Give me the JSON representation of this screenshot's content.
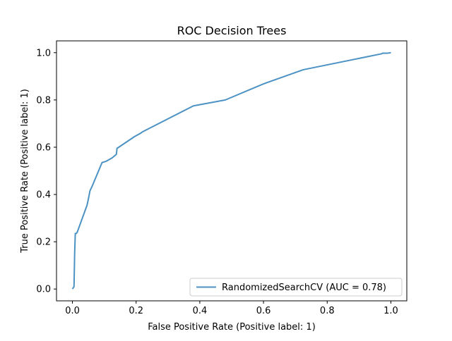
{
  "chart_data": {
    "type": "line",
    "title": "ROC Decision Trees",
    "xlabel": "False Positive Rate (Positive label: 1)",
    "ylabel": "True Positive Rate (Positive label: 1)",
    "xlim": [
      -0.05,
      1.05
    ],
    "ylim": [
      -0.05,
      1.05
    ],
    "xticks": [
      0.0,
      0.2,
      0.4,
      0.6,
      0.8,
      1.0
    ],
    "xtick_labels": [
      "0.0",
      "0.2",
      "0.4",
      "0.6",
      "0.8",
      "1.0"
    ],
    "yticks": [
      0.0,
      0.2,
      0.4,
      0.6,
      0.8,
      1.0
    ],
    "ytick_labels": [
      "0.0",
      "0.2",
      "0.4",
      "0.6",
      "0.8",
      "1.0"
    ],
    "grid": false,
    "legend_position": "lower-right",
    "series": [
      {
        "name": "RandomizedSearchCV (AUC = 0.78)",
        "color": "#1f77b4",
        "x": [
          0.0,
          0.005,
          0.007,
          0.009,
          0.012,
          0.015,
          0.046,
          0.05,
          0.055,
          0.062,
          0.093,
          0.105,
          0.125,
          0.138,
          0.14,
          0.195,
          0.215,
          0.22,
          0.38,
          0.48,
          0.6,
          0.725,
          0.97,
          0.975,
          0.99,
          1.0
        ],
        "y": [
          0.0,
          0.01,
          0.15,
          0.235,
          0.235,
          0.24,
          0.355,
          0.38,
          0.415,
          0.435,
          0.535,
          0.54,
          0.555,
          0.57,
          0.595,
          0.645,
          0.66,
          0.665,
          0.775,
          0.8,
          0.868,
          0.928,
          0.995,
          0.998,
          0.998,
          1.0
        ]
      }
    ]
  }
}
